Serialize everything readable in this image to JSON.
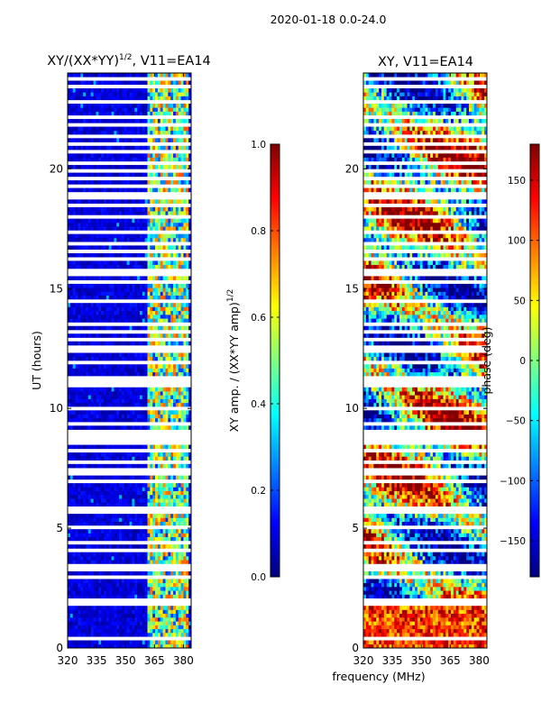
{
  "suptitle": "2020-01-18 0.0-24.0",
  "xlabel_shared": "frequency (MHz)",
  "colormap": [
    "#00007f",
    "#0000ff",
    "#007fff",
    "#00ffff",
    "#7fff7f",
    "#ffff00",
    "#ff7f00",
    "#ff0000",
    "#7f0000"
  ],
  "chart_data": [
    {
      "type": "heatmap",
      "title_main": "XY/(XX*YY)",
      "title_sup": "1/2",
      "title_suffix": ", V11=EA14",
      "xlabel": "",
      "ylabel": "UT (hours)",
      "xlim": [
        320,
        384
      ],
      "ylim": [
        0,
        24
      ],
      "xticks": [
        320,
        335,
        350,
        365,
        380
      ],
      "xtick_labels": [
        "320",
        "335",
        "350",
        "365",
        "380"
      ],
      "yticks": [
        0,
        5,
        10,
        15,
        20
      ],
      "ytick_labels": [
        "0",
        "5",
        "10",
        "15",
        "20"
      ],
      "quantity": "amplitude",
      "colorbar": {
        "label_main": "XY amp. / (XX*YY amp)",
        "label_sup": "1/2",
        "range": [
          0.0,
          1.0
        ],
        "ticks": [
          0.0,
          0.2,
          0.4,
          0.6,
          0.8,
          1.0
        ],
        "tick_labels": [
          "0.0",
          "0.2",
          "0.4",
          "0.6",
          "0.8",
          "1.0"
        ]
      }
    },
    {
      "type": "heatmap",
      "title_main": "XY, V11=EA14",
      "xlabel": "frequency (MHz)",
      "ylabel": "",
      "xlim": [
        320,
        384
      ],
      "ylim": [
        0,
        24
      ],
      "xticks": [
        320,
        335,
        350,
        365,
        380
      ],
      "xtick_labels": [
        "320",
        "335",
        "350",
        "365",
        "380"
      ],
      "yticks": [
        0,
        5,
        10,
        15,
        20
      ],
      "ytick_labels": [
        "0",
        "5",
        "10",
        "15",
        "20"
      ],
      "quantity": "phase",
      "colorbar": {
        "label_main": "phase (deg)",
        "range": [
          -180,
          180
        ],
        "ticks": [
          -150,
          -100,
          -50,
          0,
          50,
          100,
          150
        ],
        "tick_labels": [
          "−150",
          "−100",
          "−50",
          "0",
          "50",
          "100",
          "150"
        ]
      }
    }
  ],
  "flagged_hours": [
    0.4,
    1.9,
    2.05,
    2.9,
    3.3,
    3.5,
    4.05,
    4.45,
    4.8,
    5.0,
    5.7,
    5.85,
    6.95,
    7.25,
    7.45,
    7.75,
    8.0,
    8.2,
    8.5,
    8.75,
    8.85,
    9.0,
    9.35,
    10.05,
    10.9,
    11.15,
    11.35,
    11.95,
    12.35,
    12.6,
    12.95,
    13.25,
    13.5,
    13.6,
    14.45,
    15.3,
    15.55,
    15.8,
    16.2,
    16.6,
    16.9,
    17.3,
    17.4,
    18.0,
    18.5,
    18.85,
    19.0,
    19.35,
    19.6,
    19.95,
    20.3,
    20.7,
    21.05,
    21.4,
    21.8,
    22.2,
    22.4,
    22.8,
    23.2,
    23.45,
    23.7
  ]
}
